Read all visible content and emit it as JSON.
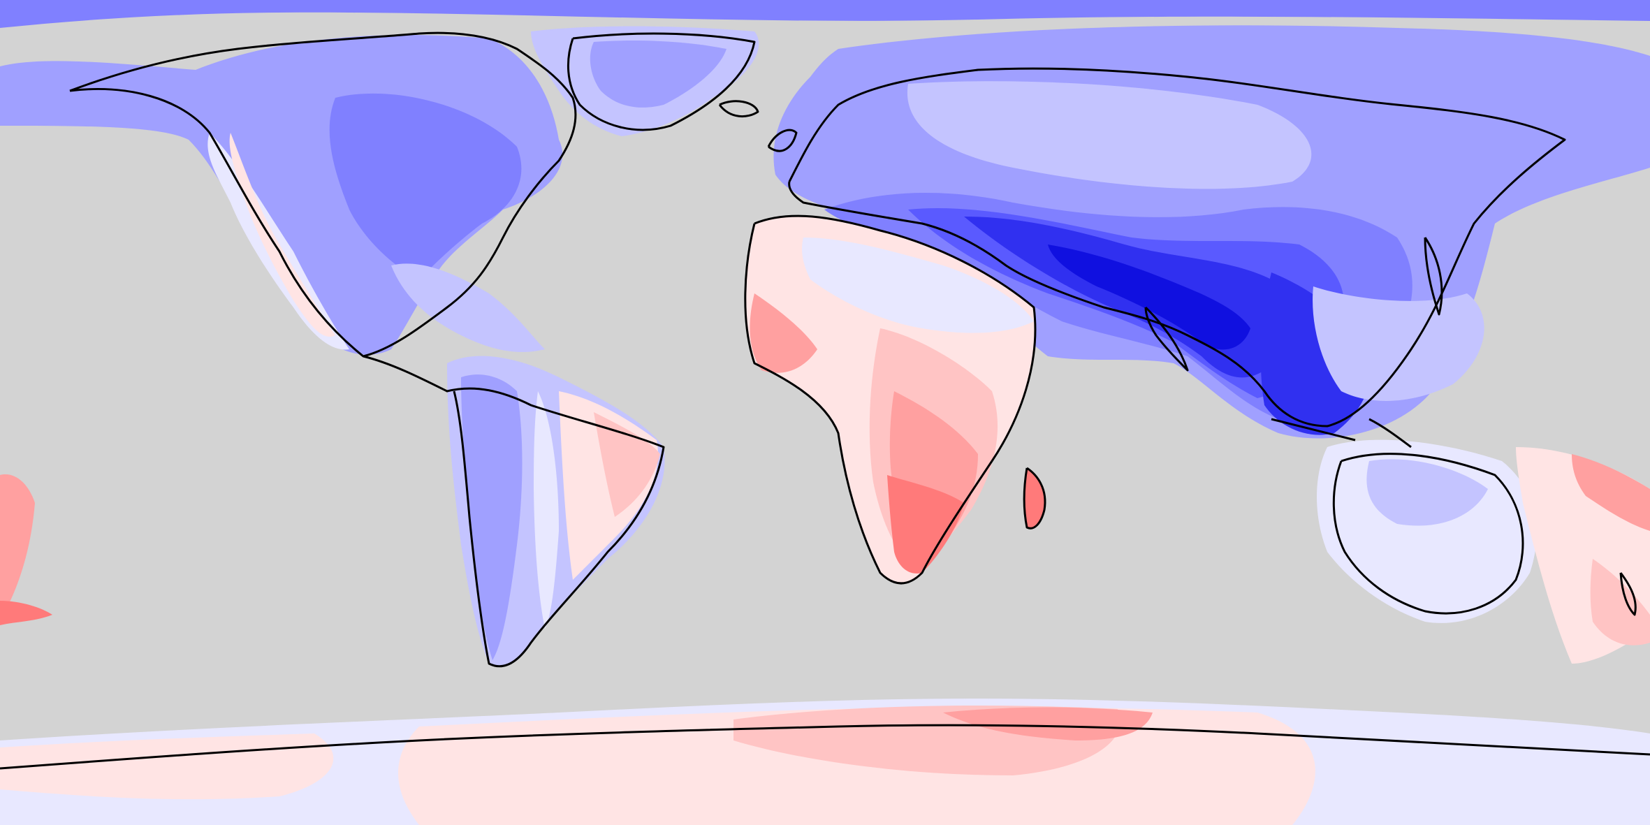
{
  "map": {
    "projection": "equirectangular",
    "extent": "global",
    "background_color": "#d3d3d3",
    "coastline_color": "#000000",
    "palette": {
      "blue_1": "#e8e8ff",
      "blue_2": "#c4c4ff",
      "blue_3": "#a0a0ff",
      "blue_4": "#8080ff",
      "blue_5": "#5a5aff",
      "blue_6": "#3030f0",
      "blue_7": "#1010e0",
      "red_1": "#ffe4e4",
      "red_2": "#ffc4c4",
      "red_3": "#ffa0a0",
      "red_4": "#ff7a7a",
      "red_5": "#ff5050"
    }
  }
}
